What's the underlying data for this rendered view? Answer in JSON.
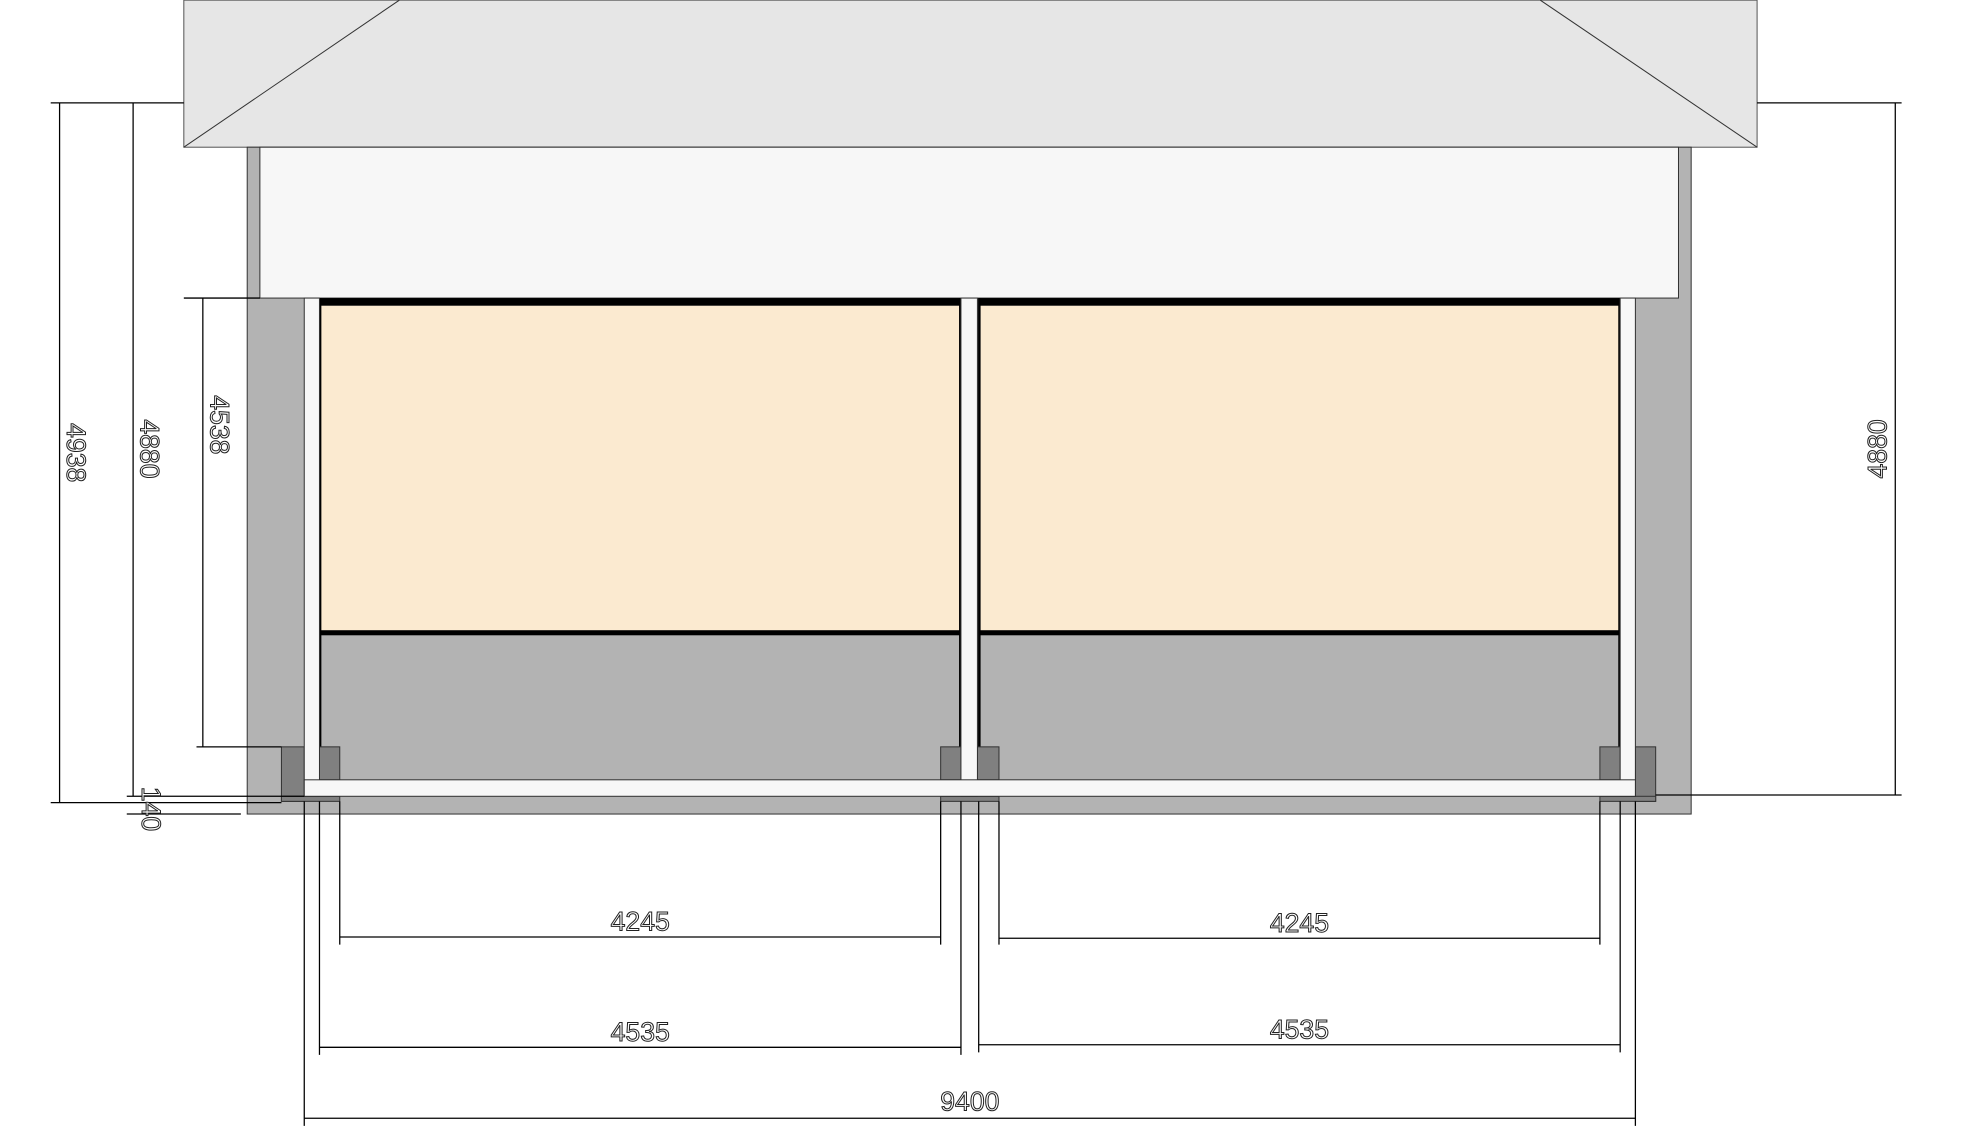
{
  "colors": {
    "roof": "#e6e6e6",
    "fascia": "#f7f7f7",
    "wall": "#b3b3b3",
    "panel": "#fbead0",
    "post": "#f7f7f7",
    "footing": "#808080",
    "line": "#000000"
  },
  "dimensions": {
    "left_total": "4938",
    "left_height": "4880",
    "panel_height": "4538",
    "base_offset": "140",
    "right_height": "4880",
    "clear_left": "4245",
    "clear_right": "4245",
    "bay_left": "4535",
    "bay_right": "4535",
    "overall_width": "9400"
  }
}
